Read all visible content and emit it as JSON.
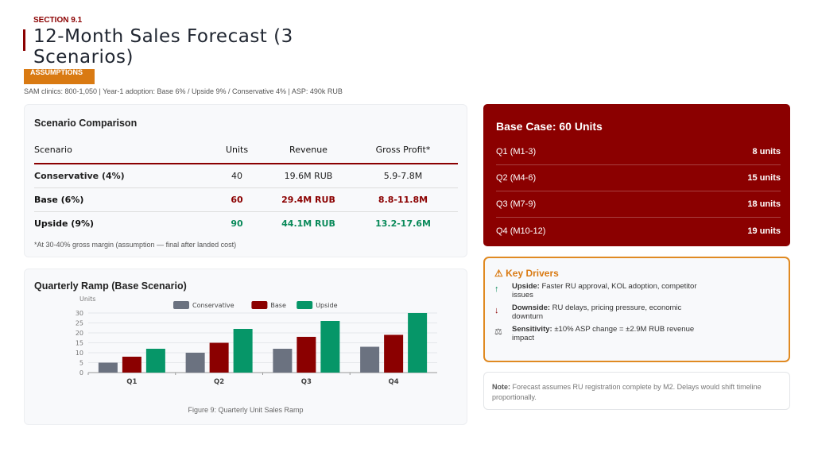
{
  "header": {
    "section": "SECTION 9.1",
    "title": "12-Month Sales Forecast (3 Scenarios)",
    "badge": "ASSUMPTIONS",
    "subtitle": "SAM clinics: 800-1,050 | Year-1 adoption: Base 6% / Upside 9% / Conservative 4% | ASP: 490k RUB"
  },
  "comparison": {
    "title": "Scenario Comparison",
    "headers": [
      "Scenario",
      "Units",
      "Revenue",
      "Gross Profit*"
    ],
    "rows": [
      [
        "Conservative (4%)",
        "40",
        "19.6M RUB",
        "5.9-7.8M"
      ],
      [
        "Base (6%)",
        "60",
        "29.4M RUB",
        "8.8-11.8M"
      ],
      [
        "Upside (9%)",
        "90",
        "44.1M RUB",
        "13.2-17.6M"
      ]
    ],
    "footnote": "*At 30-40% gross margin (assumption — final after landed cost)"
  },
  "ramp": {
    "title": "Quarterly Ramp (Base Scenario)",
    "caption": "Figure 9: Quarterly Unit Sales Ramp"
  },
  "chart_data": {
    "type": "bar",
    "categories": [
      "Q1",
      "Q2",
      "Q3",
      "Q4"
    ],
    "ylabel": "Units",
    "ylim": [
      0,
      30
    ],
    "yticks": [
      "0",
      "5",
      "10",
      "15",
      "20",
      "25",
      "30"
    ],
    "legend": "top",
    "grid": true,
    "series": [
      {
        "name": "Conservative",
        "color": "#6b7280",
        "values": [
          5,
          10,
          12,
          13
        ]
      },
      {
        "name": "Base",
        "color": "#8b0000",
        "values": [
          8,
          15,
          18,
          19
        ]
      },
      {
        "name": "Upside",
        "color": "#069668",
        "values": [
          12,
          22,
          26,
          30
        ]
      }
    ]
  },
  "base_case": {
    "title": "Base Case: 60 Units",
    "rows": [
      {
        "label": "Q1 (M1-3)",
        "value": "8 units"
      },
      {
        "label": "Q2 (M4-6)",
        "value": "15 units"
      },
      {
        "label": "Q3 (M7-9)",
        "value": "18 units"
      },
      {
        "label": "Q4 (M10-12)",
        "value": "19 units"
      }
    ]
  },
  "drivers": {
    "title": "Key Drivers",
    "items": [
      {
        "icon": "↑",
        "label": "Upside:",
        "text": "Faster RU approval, KOL adoption, competitor issues",
        "color": "#0a8a5a"
      },
      {
        "icon": "↓",
        "label": "Downside:",
        "text": "RU delays, pricing pressure, economic downturn",
        "color": "#8b0000"
      },
      {
        "icon": "⚖",
        "label": "Sensitivity:",
        "text": "±10% ASP change = ±2.9M RUB revenue impact",
        "color": "#555"
      }
    ]
  },
  "note": {
    "label": "Note:",
    "text": "Forecast assumes RU registration complete by M2. Delays would shift timeline proportionally."
  }
}
